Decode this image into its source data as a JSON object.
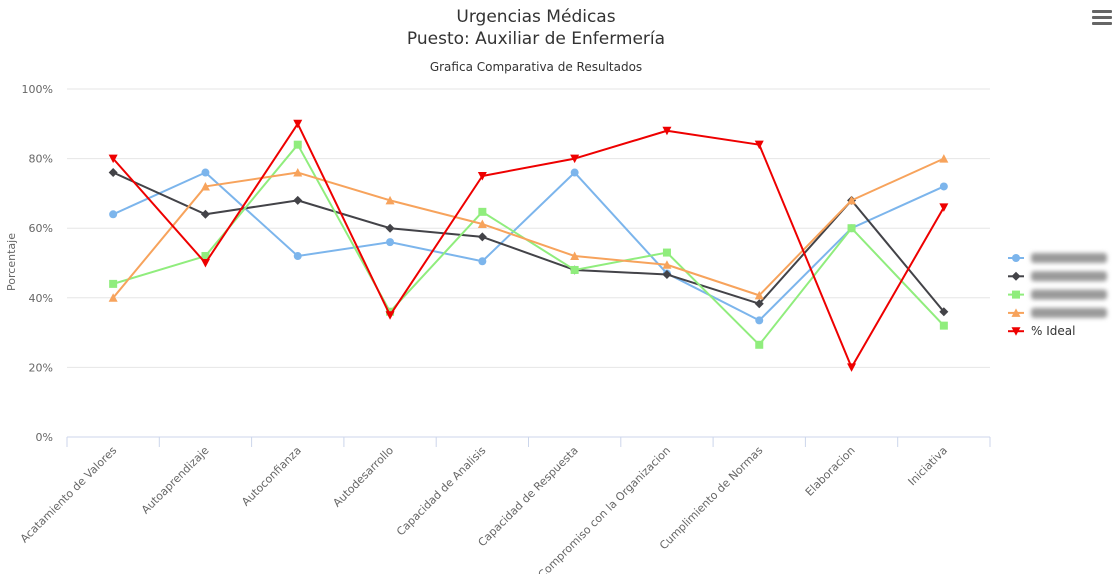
{
  "chart_data": {
    "type": "line",
    "title": [
      "Urgencias Médicas",
      "Puesto: Auxiliar de Enfermería"
    ],
    "subtitle": "Grafica Comparativa de Resultados",
    "ylabel": "Porcentaje",
    "xlabel": "",
    "ylim": [
      0,
      100
    ],
    "yticks": [
      "0%",
      "20%",
      "40%",
      "60%",
      "80%",
      "100%"
    ],
    "categories": [
      "Acatamiento de Valores",
      "Autoaprendizaje",
      "Autoconfianza",
      "Autodesarrollo",
      "Capacidad de Analisis",
      "Capacidad de Respuesta",
      "Compromiso con la Organizacion",
      "Cumplimiento de Normas",
      "Elaboracion",
      "Iniciativa"
    ],
    "grid": true,
    "legend_position": "right",
    "series": [
      {
        "name": "",
        "color": "#7cb5ec",
        "marker": "circle",
        "values": [
          64,
          76,
          52,
          56,
          50.5,
          76,
          47,
          33.5,
          60,
          72
        ]
      },
      {
        "name": "",
        "color": "#434348",
        "marker": "diamond",
        "values": [
          76,
          64,
          68,
          60,
          57.5,
          48,
          46.7,
          38.3,
          68,
          36
        ]
      },
      {
        "name": "",
        "color": "#90ed7d",
        "marker": "square",
        "values": [
          44,
          52,
          84,
          36,
          64.7,
          48,
          53,
          26.5,
          60,
          32
        ]
      },
      {
        "name": "",
        "color": "#f7a35c",
        "marker": "triangle",
        "values": [
          40,
          72,
          76,
          68,
          61.2,
          52,
          49.5,
          40.7,
          68,
          80
        ]
      },
      {
        "name": "% Ideal",
        "color": "#ee0000",
        "marker": "triangle-down",
        "values": [
          80,
          50,
          90,
          35,
          75,
          80,
          88,
          84,
          20,
          66
        ]
      }
    ]
  },
  "toolbar": {
    "menu_icon": "hamburger-menu-icon"
  }
}
